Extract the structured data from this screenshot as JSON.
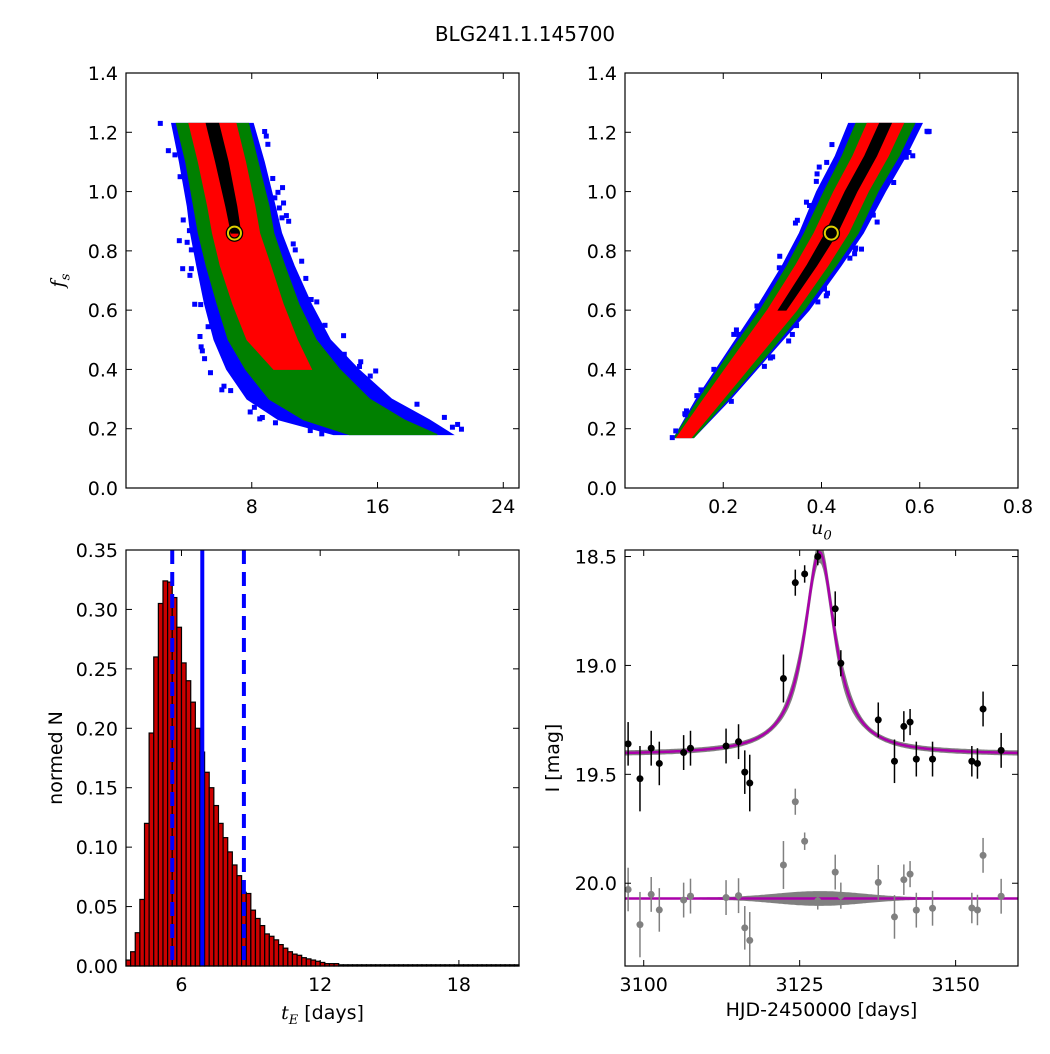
{
  "figure_title": "BLG241.1.145700",
  "chart_data": [
    {
      "type": "heatmap",
      "panel": "top-left",
      "xlabel": "",
      "ylabel": "f_s",
      "xlim": [
        0,
        25
      ],
      "ylim": [
        0.0,
        1.4
      ],
      "xticks": [
        8,
        16,
        24
      ],
      "yticks": [
        0.0,
        0.2,
        0.4,
        0.6,
        0.8,
        1.0,
        1.2,
        1.4
      ],
      "levels": [
        {
          "color": "#0000ff"
        },
        {
          "color": "#008000"
        },
        {
          "color": "#ff0000"
        },
        {
          "color": "#000000"
        }
      ],
      "best_fit": {
        "x": 6.9,
        "y": 0.86
      },
      "ridge": [
        {
          "y": 1.23,
          "center": 5.5,
          "blue": 2.6,
          "green": 2.3,
          "red": 1.5,
          "black": 0.4
        },
        {
          "y": 1.1,
          "center": 6.1,
          "blue": 2.7,
          "green": 2.3,
          "red": 1.5,
          "black": 0.4
        },
        {
          "y": 0.95,
          "center": 6.7,
          "blue": 2.8,
          "green": 2.4,
          "red": 1.5,
          "black": 0.35
        },
        {
          "y": 0.86,
          "center": 7.0,
          "blue": 2.9,
          "green": 2.4,
          "red": 1.5,
          "black": 0.3
        },
        {
          "y": 0.75,
          "center": 7.6,
          "blue": 3.1,
          "green": 2.5,
          "red": 1.6,
          "black": 0.0
        },
        {
          "y": 0.62,
          "center": 8.4,
          "blue": 3.4,
          "green": 2.6,
          "red": 1.6,
          "black": 0.0
        },
        {
          "y": 0.5,
          "center": 9.3,
          "blue": 3.7,
          "green": 2.8,
          "red": 1.6,
          "black": 0.0
        },
        {
          "y": 0.4,
          "center": 10.6,
          "blue": 4.2,
          "green": 3.0,
          "red": 1.2,
          "black": 0.0
        },
        {
          "y": 0.3,
          "center": 12.3,
          "blue": 4.6,
          "green": 3.2,
          "red": 0.0,
          "black": 0.0
        },
        {
          "y": 0.23,
          "center": 14.5,
          "blue": 4.8,
          "green": 3.2,
          "red": 0.0,
          "black": 0.0
        },
        {
          "y": 0.18,
          "center": 17.0,
          "blue": 3.8,
          "green": 2.8,
          "red": 0.0,
          "black": 0.0
        }
      ]
    },
    {
      "type": "heatmap",
      "panel": "top-right",
      "xlabel": "u_0",
      "ylabel": "",
      "xlim": [
        0.0,
        0.8
      ],
      "ylim": [
        0.0,
        1.4
      ],
      "xticks": [
        0.2,
        0.4,
        0.6,
        0.8
      ],
      "yticks": [
        0.0,
        0.2,
        0.4,
        0.6,
        0.8,
        1.0,
        1.2,
        1.4
      ],
      "levels": [
        {
          "color": "#0000ff"
        },
        {
          "color": "#008000"
        },
        {
          "color": "#ff0000"
        },
        {
          "color": "#000000"
        }
      ],
      "best_fit": {
        "x": 0.42,
        "y": 0.86
      },
      "ridge": [
        {
          "y": 0.17,
          "center": 0.12,
          "blue": 0.02,
          "green": 0.02,
          "red": 0.015,
          "black": 0.0
        },
        {
          "y": 0.3,
          "center": 0.18,
          "blue": 0.035,
          "green": 0.03,
          "red": 0.02,
          "black": 0.0
        },
        {
          "y": 0.45,
          "center": 0.25,
          "blue": 0.045,
          "green": 0.04,
          "red": 0.025,
          "black": 0.0
        },
        {
          "y": 0.6,
          "center": 0.32,
          "blue": 0.055,
          "green": 0.045,
          "red": 0.03,
          "black": 0.008
        },
        {
          "y": 0.75,
          "center": 0.38,
          "blue": 0.06,
          "green": 0.05,
          "red": 0.033,
          "black": 0.01
        },
        {
          "y": 0.86,
          "center": 0.42,
          "blue": 0.065,
          "green": 0.055,
          "red": 0.035,
          "black": 0.012
        },
        {
          "y": 1.0,
          "center": 0.46,
          "blue": 0.07,
          "green": 0.055,
          "red": 0.035,
          "black": 0.012
        },
        {
          "y": 1.12,
          "center": 0.5,
          "blue": 0.072,
          "green": 0.058,
          "red": 0.036,
          "black": 0.012
        },
        {
          "y": 1.23,
          "center": 0.53,
          "blue": 0.075,
          "green": 0.06,
          "red": 0.037,
          "black": 0.012
        }
      ]
    },
    {
      "type": "bar",
      "panel": "bottom-left",
      "xlabel": "t_E [days]",
      "ylabel": "normed N",
      "xlim": [
        3.6,
        20.6
      ],
      "ylim": [
        0.0,
        0.35
      ],
      "xticks": [
        6,
        12,
        18
      ],
      "yticks": [
        0.0,
        0.05,
        0.1,
        0.15,
        0.2,
        0.25,
        0.3,
        0.35
      ],
      "bin_start": 3.6,
      "bin_width": 0.2,
      "values": [
        0.005,
        0.012,
        0.028,
        0.056,
        0.12,
        0.196,
        0.26,
        0.305,
        0.324,
        0.323,
        0.31,
        0.285,
        0.255,
        0.24,
        0.222,
        0.2,
        0.18,
        0.163,
        0.15,
        0.135,
        0.12,
        0.108,
        0.096,
        0.085,
        0.076,
        0.062,
        0.061,
        0.047,
        0.04,
        0.034,
        0.027,
        0.025,
        0.022,
        0.018,
        0.015,
        0.012,
        0.01,
        0.009,
        0.007,
        0.006,
        0.005,
        0.004,
        0.003,
        0.002,
        0.002,
        0.002,
        0.001,
        0.001,
        0.001,
        0.001,
        0.001,
        0.001,
        0.001,
        0.001,
        0.001,
        0.001,
        0.001,
        0.001,
        0.001,
        0.001,
        0.001,
        0.001,
        0.001,
        0.001,
        0.001,
        0.001,
        0.001,
        0.001,
        0.001,
        0.001,
        0.001,
        0.001,
        0.001,
        0.001,
        0.001,
        0.001,
        0.001,
        0.001,
        0.001,
        0.001,
        0.001,
        0.001,
        0.001,
        0.001,
        0.001
      ],
      "bar_color": "#cc0000",
      "vlines": [
        {
          "x": 6.9,
          "style": "solid",
          "color": "#0000ff"
        },
        {
          "x": 5.6,
          "style": "dashed",
          "color": "#0000ff"
        },
        {
          "x": 8.7,
          "style": "dashed",
          "color": "#0000ff"
        }
      ]
    },
    {
      "type": "scatter",
      "panel": "bottom-right",
      "xlabel": "HJD-2450000 [days]",
      "ylabel": "I [mag]",
      "xlim": [
        3097,
        3160
      ],
      "ylim": [
        20.38,
        18.47
      ],
      "y_inverted": true,
      "xticks": [
        3100,
        3125,
        3150
      ],
      "yticks": [
        18.5,
        19.0,
        19.5,
        20.0
      ],
      "model": {
        "baseline": 19.41,
        "amplitude": 0.93,
        "t0": 3128.2,
        "width": 3.0,
        "color": "#aa00aa",
        "band_color": "#808080"
      },
      "residual_baseline": 20.07,
      "points": [
        {
          "x": 3097.5,
          "y": 19.36,
          "err": 0.1
        },
        {
          "x": 3099.4,
          "y": 19.52,
          "err": 0.15
        },
        {
          "x": 3101.2,
          "y": 19.38,
          "err": 0.08
        },
        {
          "x": 3102.5,
          "y": 19.45,
          "err": 0.1
        },
        {
          "x": 3106.4,
          "y": 19.4,
          "err": 0.08
        },
        {
          "x": 3107.5,
          "y": 19.38,
          "err": 0.08
        },
        {
          "x": 3113.2,
          "y": 19.37,
          "err": 0.08
        },
        {
          "x": 3115.2,
          "y": 19.35,
          "err": 0.08
        },
        {
          "x": 3116.2,
          "y": 19.49,
          "err": 0.1
        },
        {
          "x": 3117.0,
          "y": 19.54,
          "err": 0.13
        },
        {
          "x": 3122.4,
          "y": 19.06,
          "err": 0.11
        },
        {
          "x": 3124.3,
          "y": 18.62,
          "err": 0.06
        },
        {
          "x": 3125.8,
          "y": 18.58,
          "err": 0.04
        },
        {
          "x": 3127.9,
          "y": 18.5,
          "err": 0.04
        },
        {
          "x": 3130.7,
          "y": 18.74,
          "err": 0.08
        },
        {
          "x": 3131.6,
          "y": 18.99,
          "err": 0.06
        },
        {
          "x": 3137.6,
          "y": 19.25,
          "err": 0.08
        },
        {
          "x": 3140.2,
          "y": 19.44,
          "err": 0.1
        },
        {
          "x": 3141.7,
          "y": 19.28,
          "err": 0.07
        },
        {
          "x": 3142.7,
          "y": 19.26,
          "err": 0.06
        },
        {
          "x": 3143.7,
          "y": 19.43,
          "err": 0.08
        },
        {
          "x": 3146.3,
          "y": 19.43,
          "err": 0.08
        },
        {
          "x": 3152.6,
          "y": 19.44,
          "err": 0.07
        },
        {
          "x": 3153.5,
          "y": 19.45,
          "err": 0.07
        },
        {
          "x": 3154.4,
          "y": 19.2,
          "err": 0.08
        },
        {
          "x": 3157.3,
          "y": 19.39,
          "err": 0.08
        }
      ]
    }
  ]
}
